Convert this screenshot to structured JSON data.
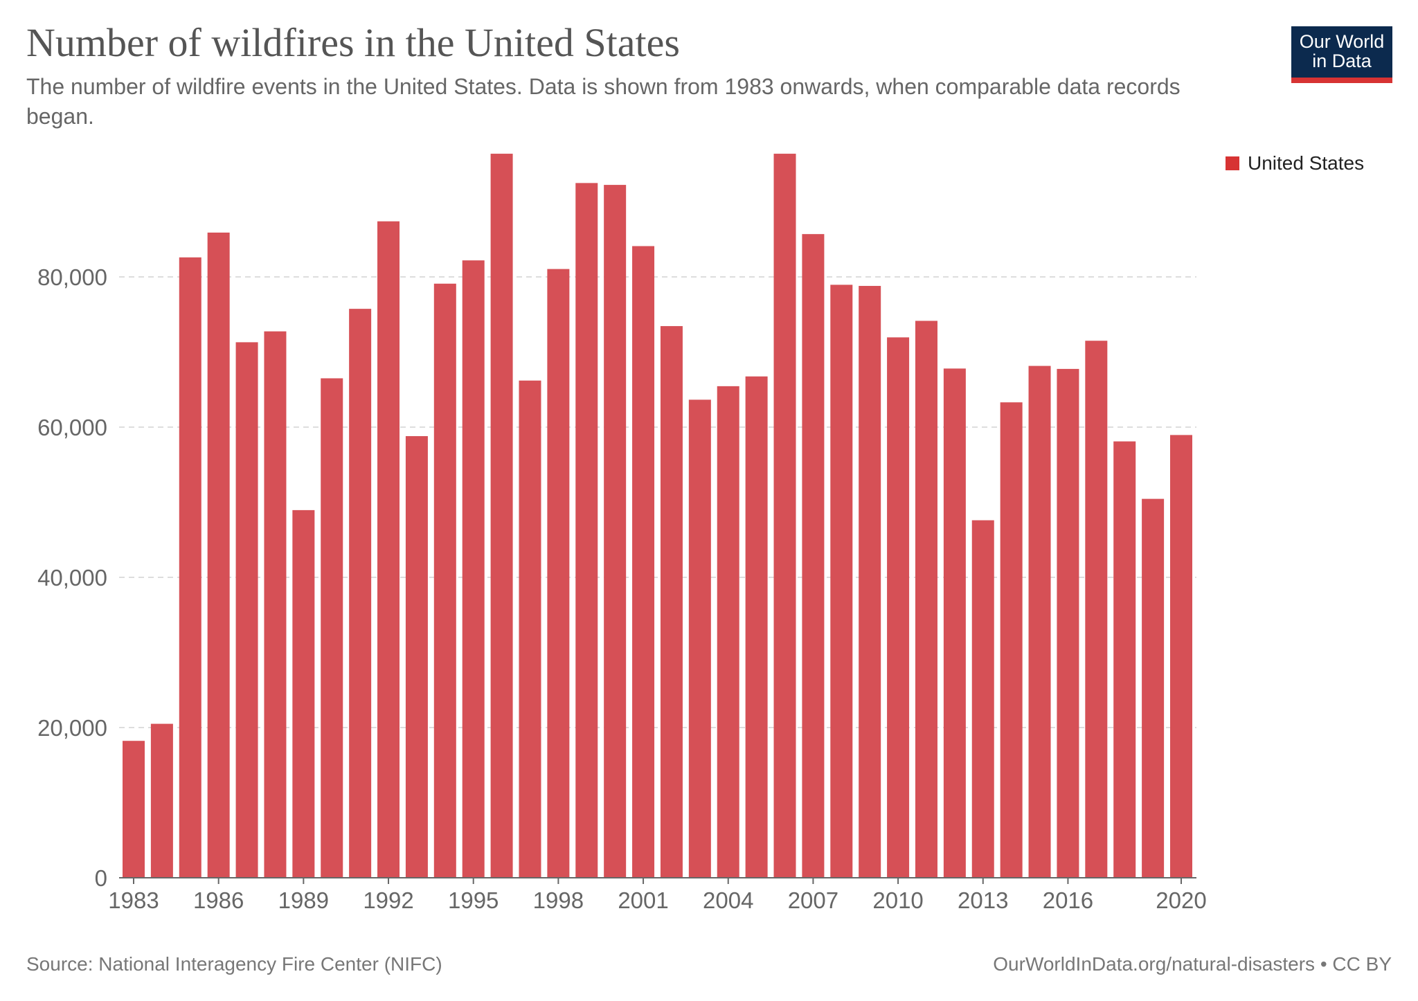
{
  "header": {
    "title": "Number of wildfires in the United States",
    "subtitle": "The number of wildfire events in the United States. Data is shown from 1983 onwards, when comparable data records began."
  },
  "logo": {
    "line1": "Our World",
    "line2": "in Data"
  },
  "footer": {
    "source": "Source: National Interagency Fire Center (NIFC)",
    "link": "OurWorldInData.org/natural-disasters • CC BY"
  },
  "colors": {
    "bar": "#d65056",
    "legend_swatch": "#d73333",
    "logo_bg": "#0c2a4e",
    "logo_accent": "#d73333",
    "grid": "#dddddd",
    "axis": "#666666"
  },
  "chart_data": {
    "type": "bar",
    "categories": [
      1983,
      1984,
      1985,
      1986,
      1987,
      1988,
      1989,
      1990,
      1991,
      1992,
      1993,
      1994,
      1995,
      1996,
      1997,
      1998,
      1999,
      2000,
      2001,
      2002,
      2003,
      2004,
      2005,
      2006,
      2007,
      2008,
      2009,
      2010,
      2011,
      2012,
      2013,
      2014,
      2015,
      2016,
      2017,
      2018,
      2019,
      2020
    ],
    "series": [
      {
        "name": "United States",
        "values": [
          18230,
          20500,
          82600,
          85900,
          71300,
          72750,
          48950,
          66500,
          75750,
          87400,
          58800,
          79100,
          82200,
          96400,
          66200,
          81050,
          92500,
          92250,
          84100,
          73450,
          63650,
          65450,
          66750,
          96400,
          85700,
          78950,
          78800,
          71950,
          74150,
          67800,
          47600,
          63300,
          68150,
          67750,
          71500,
          58100,
          50450,
          58950
        ]
      }
    ],
    "xticks": [
      "1983",
      "1986",
      "1989",
      "1992",
      "1995",
      "1998",
      "2001",
      "2004",
      "2007",
      "2010",
      "2013",
      "2016",
      "2020"
    ],
    "yticks": [
      "0",
      "20,000",
      "40,000",
      "60,000",
      "80,000"
    ],
    "ytick_values": [
      0,
      20000,
      40000,
      60000,
      80000
    ],
    "ylim": [
      0,
      100000
    ],
    "grid": true,
    "legend_position": "top-right"
  }
}
